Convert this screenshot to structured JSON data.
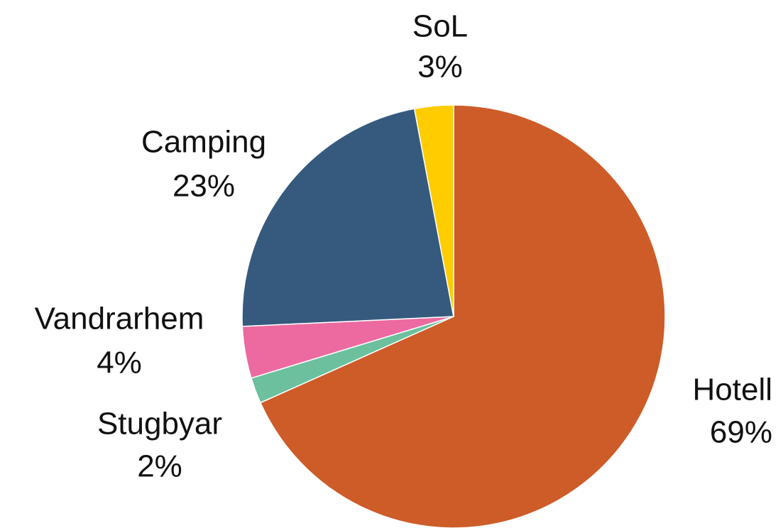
{
  "chart_data": {
    "type": "pie",
    "categories": [
      "Hotell",
      "Stugbyar",
      "Vandrarhem",
      "Camping",
      "SoL"
    ],
    "values": [
      69,
      2,
      4,
      23,
      3
    ],
    "value_labels": [
      "69%",
      "2%",
      "4%",
      "23%",
      "3%"
    ],
    "colors": [
      "#cd5c28",
      "#6cc09e",
      "#ec6aa0",
      "#365a7e",
      "#ffcc00"
    ]
  }
}
